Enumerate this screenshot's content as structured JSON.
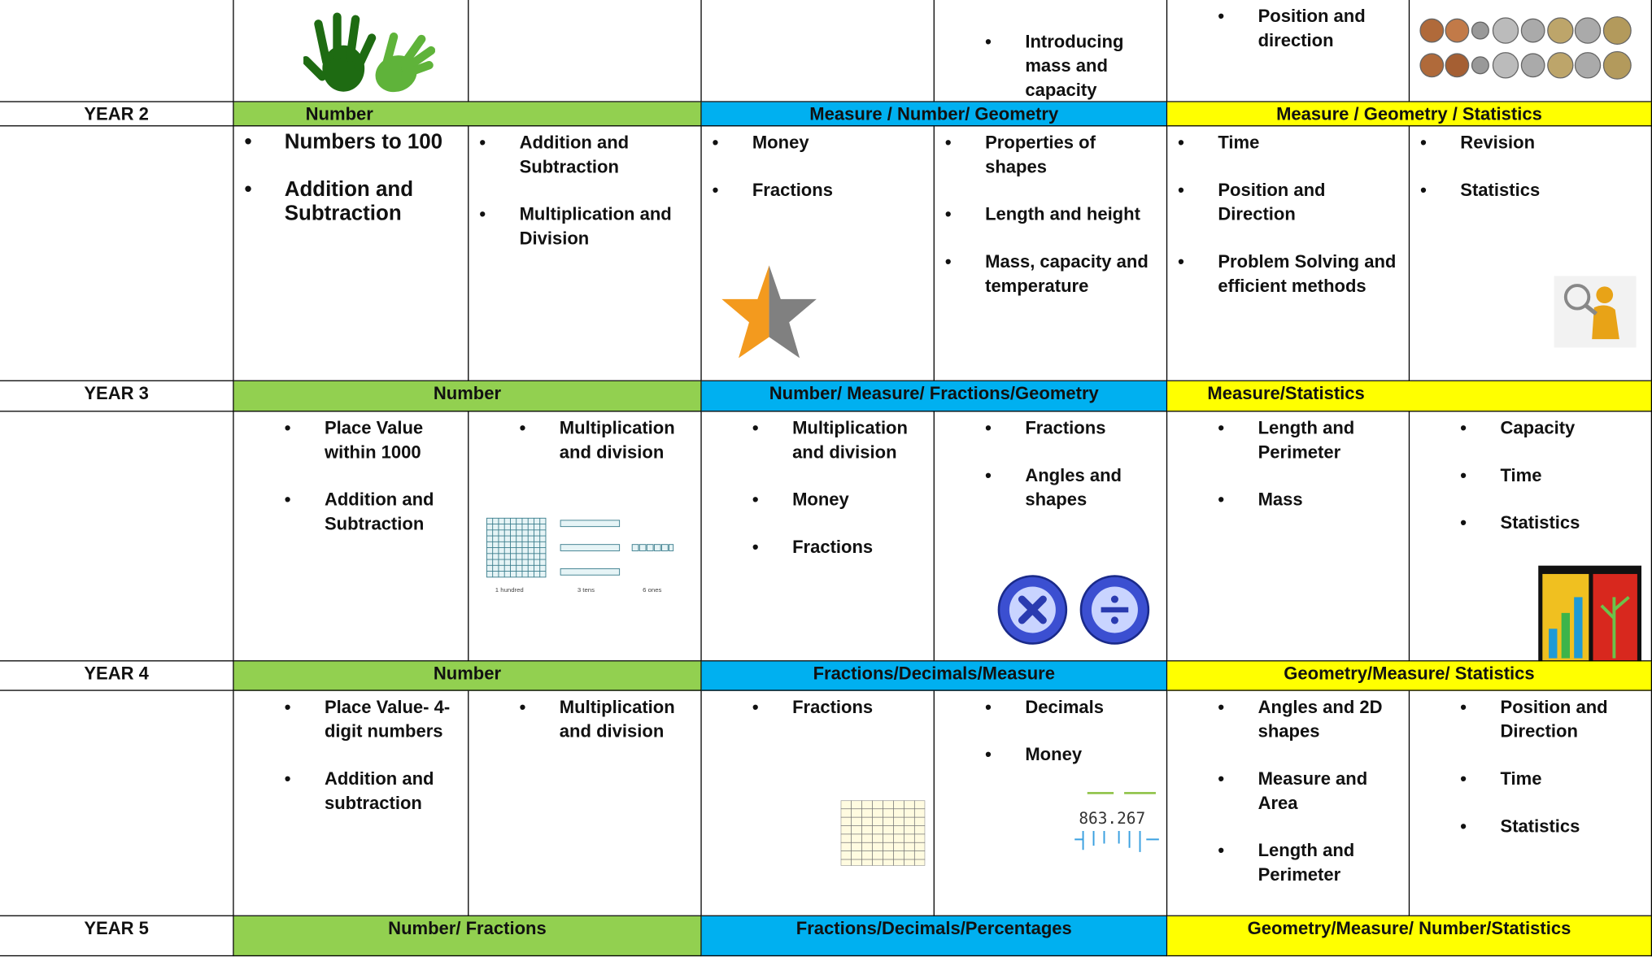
{
  "top_row": {
    "cells": [
      [],
      [],
      [],
      [
        "Introducing mass and capacity"
      ],
      [
        "Position and direction"
      ],
      []
    ]
  },
  "years": [
    {
      "label": "YEAR 2",
      "headers": [
        "Number",
        "Measure / Number/ Geometry",
        "Measure / Geometry / Statistics"
      ],
      "cells": [
        [
          "Numbers to 100",
          "Addition and Subtraction"
        ],
        [
          "Addition and Subtraction",
          "Multiplication and Division"
        ],
        [
          "Money",
          "Fractions"
        ],
        [
          "Properties of shapes",
          "Length and height",
          "Mass, capacity and temperature"
        ],
        [
          "Time",
          "Position and Direction",
          "Problem Solving and efficient methods"
        ],
        [
          "Revision",
          "Statistics"
        ]
      ]
    },
    {
      "label": "YEAR 3",
      "headers": [
        "Number",
        "Number/ Measure/ Fractions/Geometry",
        "Measure/Statistics"
      ],
      "cells": [
        [
          "Place Value within 1000",
          "Addition and Subtraction"
        ],
        [
          "Multiplication and division"
        ],
        [
          "Multiplication and division",
          "Money",
          "Fractions"
        ],
        [
          "Fractions",
          "Angles and shapes"
        ],
        [
          "Length and Perimeter",
          "Mass"
        ],
        [
          "Capacity",
          "Time",
          "Statistics"
        ]
      ]
    },
    {
      "label": "YEAR 4",
      "headers": [
        "Number",
        "Fractions/Decimals/Measure",
        "Geometry/Measure/ Statistics"
      ],
      "cells": [
        [
          "Place Value- 4-digit numbers",
          "Addition and subtraction"
        ],
        [
          "Multiplication and division"
        ],
        [
          "Fractions"
        ],
        [
          "Decimals",
          "Money"
        ],
        [
          "Angles and 2D shapes",
          "Measure and Area",
          "Length and Perimeter"
        ],
        [
          "Position and Direction",
          "Time",
          "Statistics"
        ]
      ]
    },
    {
      "label": "YEAR 5",
      "headers": [
        "Number/ Fractions",
        "Fractions/Decimals/Percentages",
        "Geometry/Measure/ Number/Statistics"
      ]
    }
  ],
  "image_labels": {
    "place_value": [
      "1 hundred",
      "3 tens",
      "6 ones"
    ],
    "decimal": "863.267"
  }
}
